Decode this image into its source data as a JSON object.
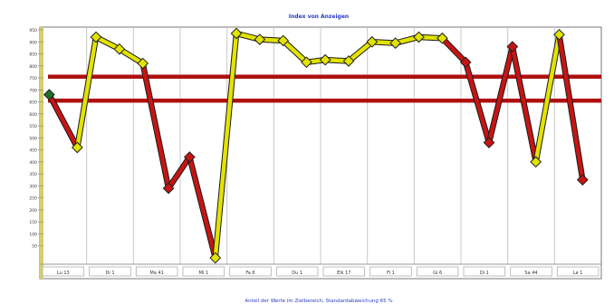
{
  "chart_data": {
    "type": "line",
    "title": "Index von Anzeigen",
    "footer": "Anteil der Werte im Zielbereich, Standardabweichung 65 %",
    "categories": [
      "Lu 13",
      "Di 1",
      "Ma 41",
      "Mi 1",
      "Fa 6",
      "Du 1",
      "Elk 17",
      "Fi 1",
      "Gi 6",
      "Di 1",
      "Sa 44",
      "Le 1"
    ],
    "ylim": [
      0,
      950
    ],
    "yticks": [
      50,
      100,
      150,
      200,
      250,
      300,
      350,
      400,
      450,
      500,
      550,
      600,
      650,
      700,
      750,
      800,
      850,
      900,
      950
    ],
    "grid": true,
    "reference_lines": [
      {
        "value": 755,
        "color": "#b01010"
      },
      {
        "value": 655,
        "color": "#b01010"
      }
    ],
    "series": [
      {
        "x": [
          0.2,
          0.8,
          1.2,
          1.7,
          2.2,
          2.75,
          3.2,
          3.75,
          4.2,
          4.7,
          5.2,
          5.7,
          6.1,
          6.6,
          7.1,
          7.6,
          8.1,
          8.6,
          9.1,
          9.6,
          10.1,
          10.6,
          11.1,
          11.6
        ],
        "values": [
          680,
          460,
          920,
          870,
          810,
          290,
          420,
          0,
          935,
          910,
          905,
          815,
          825,
          820,
          900,
          895,
          920,
          915,
          815,
          480,
          880,
          400,
          930,
          325
        ],
        "line_colors": [
          "#c81414",
          "#e3e300",
          "#e3e300",
          "#e3e300",
          "#c81414",
          "#c81414",
          "#c81414",
          "#e3e300",
          "#e3e300",
          "#e3e300",
          "#e3e300",
          "#e3e300",
          "#e3e300",
          "#e3e300",
          "#e3e300",
          "#e3e300",
          "#e3e300",
          "#c81414",
          "#c81414",
          "#c81414",
          "#c81414",
          "#e3e300",
          "#c81414"
        ]
      }
    ],
    "colors": {
      "above_target": "#e3e300",
      "below_target": "#c81414",
      "first_point": "#1f6e2a",
      "point_outline": "#202020",
      "frame": "#7a7a7a",
      "title_text": "#2a3cc8"
    }
  }
}
